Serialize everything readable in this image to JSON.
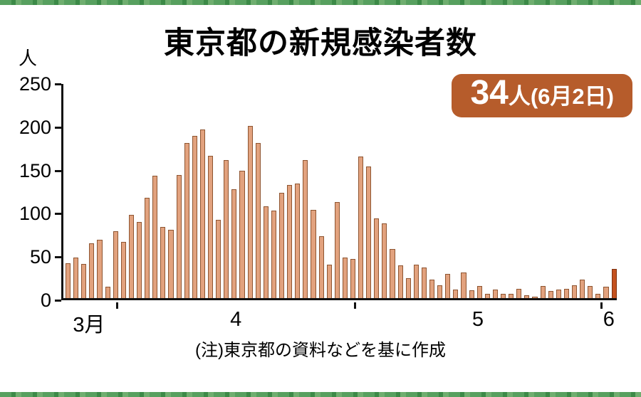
{
  "page": {
    "title": "東京都の新規感染者数",
    "unit_label": "人",
    "badge": {
      "value": "34",
      "suffix": "人(6月2日)"
    },
    "footnote": "(注)東京都の資料などを基に作成"
  },
  "colors": {
    "badge_background": "#b65c2b",
    "badge_text": "#ffffff",
    "bar_fill": "#e2a27e",
    "bar_border": "#8e5531",
    "highlight_fill": "#c4521f",
    "highlight_border": "#7e3210",
    "axis": "#111111",
    "edge_strip_green": "#4c9a57"
  },
  "chart_data": {
    "type": "bar",
    "title": "東京都の新規感染者数",
    "ylabel": "人",
    "xlabel": "",
    "ylim": [
      0,
      250
    ],
    "yticks": [
      250,
      200,
      150,
      100,
      50,
      0
    ],
    "grid": false,
    "legend": false,
    "annotation": "34人(6月2日)",
    "months": [
      {
        "label": "3月",
        "count": 7
      },
      {
        "label": "4",
        "count": 30
      },
      {
        "label": "5",
        "count": 31
      },
      {
        "label": "6",
        "count": 2
      }
    ],
    "values": [
      41,
      47,
      40,
      64,
      68,
      13,
      78,
      66,
      97,
      89,
      117,
      143,
      83,
      80,
      144,
      181,
      189,
      197,
      166,
      91,
      161,
      127,
      149,
      201,
      181,
      107,
      102,
      123,
      132,
      134,
      161,
      103,
      72,
      39,
      112,
      47,
      46,
      165,
      154,
      93,
      87,
      57,
      38,
      23,
      39,
      36,
      22,
      15,
      28,
      10,
      30,
      9,
      14,
      5,
      10,
      5,
      5,
      11,
      3,
      2,
      14,
      8,
      10,
      11,
      15,
      22,
      14,
      5,
      13,
      34
    ],
    "highlight_last_bar": true,
    "bar_color": "#e2a27e",
    "bar_border_color": "#8e5531",
    "highlight_color": "#c4521f",
    "highlight_border_color": "#7e3210"
  }
}
